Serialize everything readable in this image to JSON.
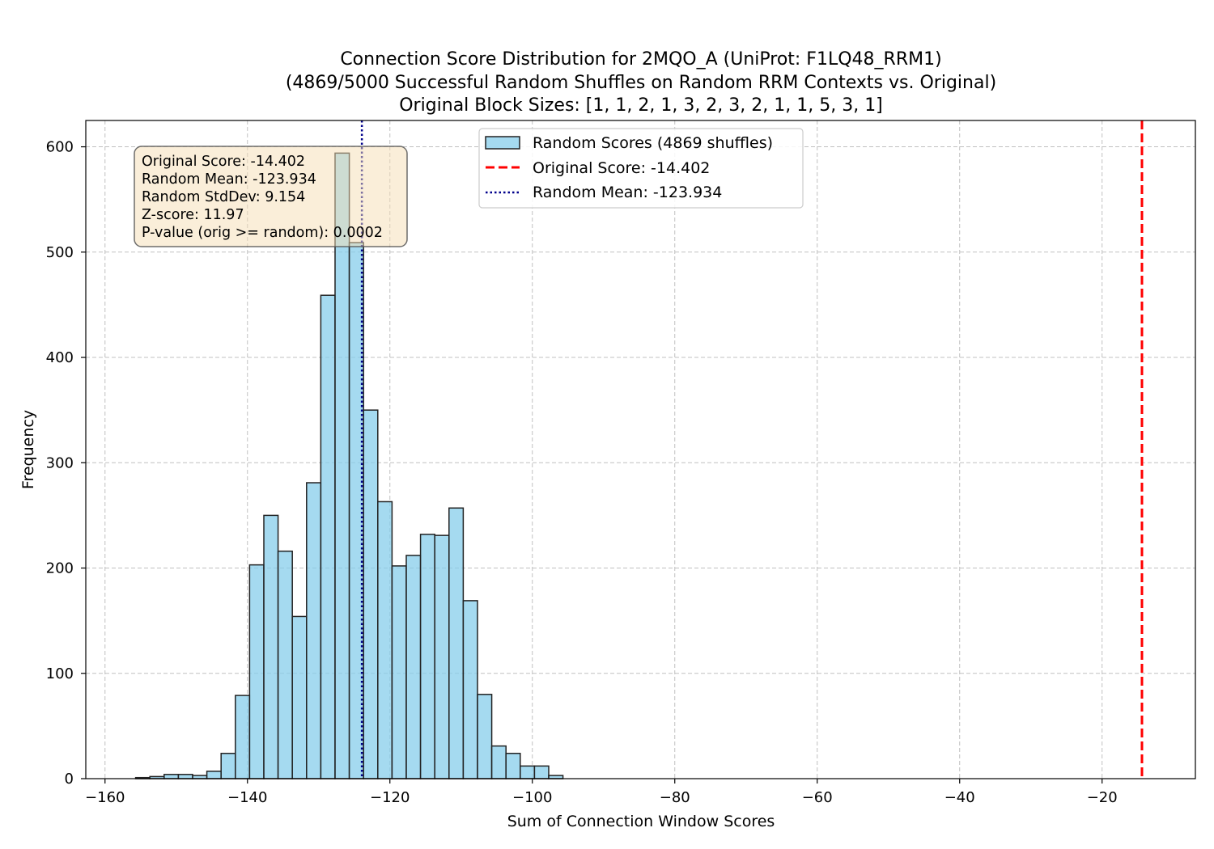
{
  "chart_data": {
    "type": "bar",
    "title": [
      "Connection Score Distribution for 2MQO_A (UniProt: F1LQ48_RRM1)",
      "(4869/5000 Successful Random Shuffles on Random RRM Contexts vs. Original)",
      "Original Block Sizes: [1, 1, 2, 1, 3, 2, 3, 2, 1, 1, 5, 3, 1]"
    ],
    "xlabel": "Sum of Connection Window Scores",
    "ylabel": "Frequency",
    "xlim": [
      -162.7,
      -6.9
    ],
    "ylim": [
      0,
      625
    ],
    "xticks": [
      -160,
      -140,
      -120,
      -100,
      -80,
      -60,
      -40,
      -20
    ],
    "xtick_labels": [
      "−160",
      "−140",
      "−120",
      "−100",
      "−80",
      "−60",
      "−40",
      "−20"
    ],
    "yticks": [
      0,
      100,
      200,
      300,
      400,
      500,
      600
    ],
    "ytick_labels": [
      "0",
      "100",
      "200",
      "300",
      "400",
      "500",
      "600"
    ],
    "grid": true,
    "bin_width": 2.0,
    "bins": [
      {
        "x0": -155.7,
        "x1": -153.7,
        "count": 1
      },
      {
        "x0": -153.7,
        "x1": -151.7,
        "count": 2
      },
      {
        "x0": -151.7,
        "x1": -149.7,
        "count": 4
      },
      {
        "x0": -149.7,
        "x1": -147.7,
        "count": 4
      },
      {
        "x0": -147.7,
        "x1": -145.7,
        "count": 3
      },
      {
        "x0": -145.7,
        "x1": -143.7,
        "count": 7
      },
      {
        "x0": -143.7,
        "x1": -141.7,
        "count": 24
      },
      {
        "x0": -141.7,
        "x1": -139.7,
        "count": 79
      },
      {
        "x0": -139.7,
        "x1": -137.7,
        "count": 203
      },
      {
        "x0": -137.7,
        "x1": -135.7,
        "count": 250
      },
      {
        "x0": -135.7,
        "x1": -133.7,
        "count": 216
      },
      {
        "x0": -133.7,
        "x1": -131.7,
        "count": 154
      },
      {
        "x0": -131.7,
        "x1": -129.7,
        "count": 281
      },
      {
        "x0": -129.7,
        "x1": -127.7,
        "count": 459
      },
      {
        "x0": -127.7,
        "x1": -125.7,
        "count": 594
      },
      {
        "x0": -125.7,
        "x1": -123.7,
        "count": 509
      },
      {
        "x0": -123.7,
        "x1": -121.7,
        "count": 350
      },
      {
        "x0": -121.7,
        "x1": -119.7,
        "count": 263
      },
      {
        "x0": -119.7,
        "x1": -117.7,
        "count": 202
      },
      {
        "x0": -117.7,
        "x1": -115.7,
        "count": 212
      },
      {
        "x0": -115.7,
        "x1": -113.7,
        "count": 232
      },
      {
        "x0": -113.7,
        "x1": -111.7,
        "count": 231
      },
      {
        "x0": -111.7,
        "x1": -109.7,
        "count": 257
      },
      {
        "x0": -109.7,
        "x1": -107.7,
        "count": 169
      },
      {
        "x0": -107.7,
        "x1": -105.7,
        "count": 80
      },
      {
        "x0": -105.7,
        "x1": -103.7,
        "count": 31
      },
      {
        "x0": -103.7,
        "x1": -101.7,
        "count": 24
      },
      {
        "x0": -101.7,
        "x1": -99.7,
        "count": 12
      },
      {
        "x0": -99.7,
        "x1": -97.7,
        "count": 12
      },
      {
        "x0": -97.7,
        "x1": -95.7,
        "count": 3
      }
    ],
    "series": [
      {
        "name": "Random Scores (4869 shuffles)",
        "kind": "histogram",
        "color": "#87CEEB",
        "edge_color": "#222222"
      },
      {
        "name": "Original Score: -14.402",
        "kind": "vline",
        "value": -14.402,
        "color": "#ff0000",
        "style": "dashed"
      },
      {
        "name": "Random Mean: -123.934",
        "kind": "vline",
        "value": -123.934,
        "color": "#00008b",
        "style": "dotted"
      }
    ],
    "legend": {
      "placement": "upper-center",
      "entries": [
        "Random Scores (4869 shuffles)",
        "Original Score: -14.402",
        "Random Mean: -123.934"
      ]
    },
    "annotation": {
      "placement": "top-left",
      "lines": [
        "Original Score: -14.402",
        "Random Mean: -123.934",
        "Random StdDev: 9.154",
        "Z-score: 11.97",
        "P-value (orig >= random): 0.0002"
      ],
      "background": "#f5deb3"
    }
  }
}
